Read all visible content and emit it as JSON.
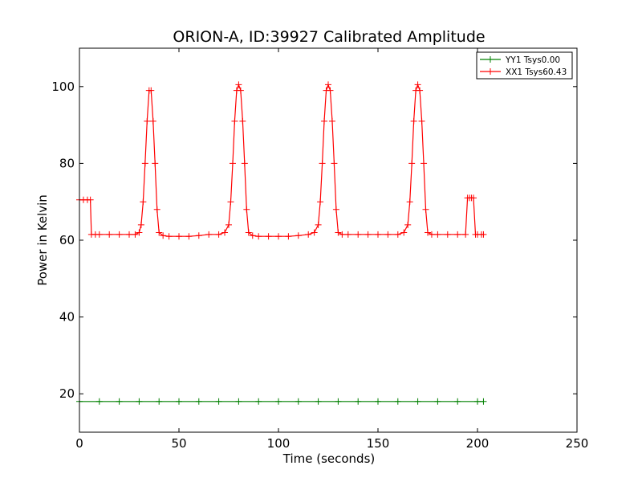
{
  "chart_data": {
    "type": "line",
    "title": "ORION-A, ID:39927 Calibrated Amplitude",
    "xlabel": "Time (seconds)",
    "ylabel": "Power in Kelvin",
    "xlim": [
      0,
      250
    ],
    "ylim": [
      10,
      110
    ],
    "xticks": [
      0,
      50,
      100,
      150,
      200,
      250
    ],
    "yticks": [
      20,
      40,
      60,
      80,
      100
    ],
    "grid": false,
    "legend_position": "top-right",
    "marker": "+",
    "series": [
      {
        "name": "YY1 Tsys0.00",
        "color": "#008000",
        "x": [
          0,
          10,
          20,
          30,
          40,
          50,
          60,
          70,
          80,
          90,
          100,
          110,
          120,
          130,
          140,
          150,
          160,
          170,
          180,
          190,
          200,
          203
        ],
        "y": [
          18,
          18,
          18,
          18,
          18,
          18,
          18,
          18,
          18,
          18,
          18,
          18,
          18,
          18,
          18,
          18,
          18,
          18,
          18,
          18,
          18,
          18
        ]
      },
      {
        "name": "XX1 Tsys60.43",
        "color": "#ff0000",
        "x": [
          0,
          2,
          4,
          5.5,
          6,
          8,
          10,
          15,
          20,
          25,
          28,
          30,
          31,
          32,
          33,
          34,
          35,
          36,
          37,
          38,
          39,
          40,
          42,
          45,
          50,
          55,
          60,
          65,
          70,
          73,
          75,
          76,
          77,
          78,
          79,
          80,
          81,
          82,
          83,
          84,
          85,
          87,
          90,
          95,
          100,
          105,
          110,
          115,
          118,
          120,
          121,
          122,
          123,
          124,
          125,
          126,
          127,
          128,
          129,
          130,
          132,
          135,
          140,
          145,
          150,
          155,
          160,
          163,
          165,
          166,
          167,
          168,
          169,
          170,
          171,
          172,
          173,
          174,
          175,
          177,
          180,
          185,
          190,
          194,
          195,
          196,
          197,
          198,
          199,
          200,
          202,
          203
        ],
        "y": [
          70.5,
          70.5,
          70.5,
          70.5,
          61.5,
          61.5,
          61.5,
          61.5,
          61.5,
          61.5,
          61.5,
          62,
          64,
          70,
          80,
          91,
          99,
          99,
          91,
          80,
          68,
          62,
          61.2,
          61,
          61,
          61,
          61.2,
          61.5,
          61.5,
          62,
          64,
          70,
          80,
          91,
          99,
          100.5,
          99,
          91,
          80,
          68,
          62,
          61.2,
          61,
          61,
          61,
          61,
          61.2,
          61.5,
          62,
          64,
          70,
          80,
          91,
          99,
          100.5,
          99,
          91,
          80,
          68,
          62,
          61.5,
          61.5,
          61.5,
          61.5,
          61.5,
          61.5,
          61.5,
          62,
          64,
          70,
          80,
          91,
          99,
          100.5,
          99,
          91,
          80,
          68,
          62,
          61.5,
          61.5,
          61.5,
          61.5,
          61.5,
          71,
          71,
          71,
          71,
          61.5,
          61.5,
          61.5,
          61.5
        ]
      }
    ]
  }
}
